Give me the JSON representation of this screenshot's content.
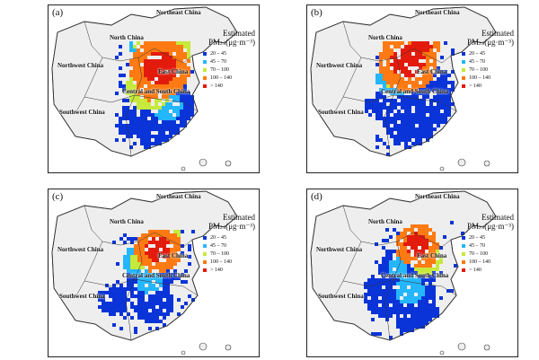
{
  "colors": {
    "bin_20_45": "#0a34d8",
    "bin_45_70": "#24b6ff",
    "bin_70_100": "#c6e93b",
    "bin_100_140": "#ff7a12",
    "bin_gt140": "#e31b0d",
    "land": "#eeeeee",
    "boundary": "#333333"
  },
  "legend": {
    "title_line1": "Estimated",
    "title_pm": "PM",
    "title_sub": "2.5",
    "title_unit": "(μg·m⁻³)",
    "labels": [
      "20 – 45",
      "45 – 70",
      "70 – 100",
      "100 – 140",
      "> 140"
    ]
  },
  "regions": {
    "northeast": "Northeast China",
    "north": "North China",
    "northwest": "Northwest China",
    "east": "East China",
    "central_south": "Central and South China",
    "southwest": "Southwest China"
  },
  "panels": [
    {
      "tag": "(a)"
    },
    {
      "tag": "(b)"
    },
    {
      "tag": "(c)"
    },
    {
      "tag": "(d)"
    }
  ],
  "map_data": {
    "description_levels": [
      "20–45",
      "45–70",
      "70–100",
      "100–140",
      ">140"
    ]
  }
}
